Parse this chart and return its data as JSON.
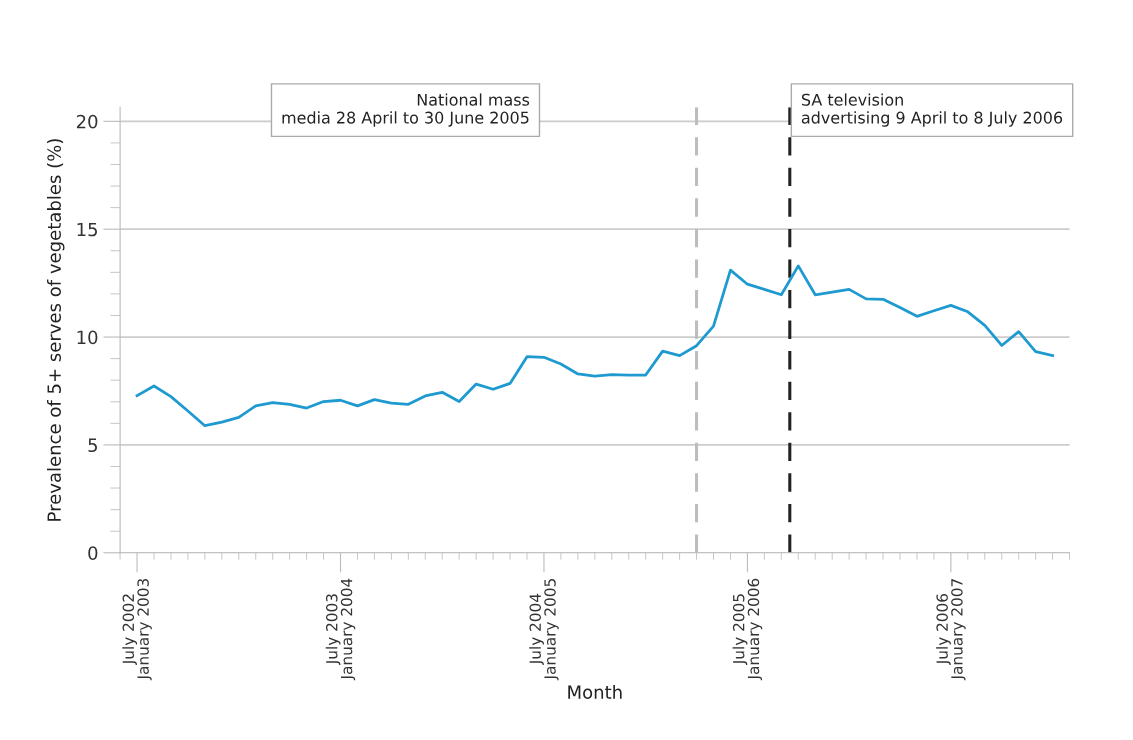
{
  "chart_data": {
    "type": "line",
    "xlabel": "Month",
    "ylabel": "Prevalence of 5+ serves of vegetables (%)",
    "categories": [
      "July 2002\nJanuary 2003",
      null,
      null,
      null,
      null,
      null,
      null,
      null,
      null,
      null,
      null,
      null,
      "July 2003\nJanuary 2004",
      null,
      null,
      null,
      null,
      null,
      null,
      null,
      null,
      null,
      null,
      null,
      "July 2004\nJanuary 2005",
      null,
      null,
      null,
      null,
      null,
      null,
      null,
      null,
      null,
      null,
      null,
      "July 2005\nJanuary 2006",
      null,
      null,
      null,
      null,
      null,
      null,
      null,
      null,
      null,
      null,
      null,
      "July 2006\nJanuary 2007",
      null,
      null,
      null,
      null,
      null,
      null
    ],
    "series": [
      {
        "color": "#1e9ad0",
        "values": [
          7.28,
          7.73,
          7.24,
          6.57,
          5.89,
          6.06,
          6.28,
          6.81,
          6.96,
          6.88,
          6.71,
          7.01,
          7.07,
          6.81,
          7.1,
          6.94,
          6.88,
          7.27,
          7.44,
          7.01,
          7.82,
          7.58,
          7.85,
          9.09,
          9.06,
          8.75,
          8.29,
          8.19,
          8.26,
          8.24,
          8.24,
          9.35,
          9.14,
          9.6,
          10.51,
          13.1,
          12.45,
          12.21,
          11.96,
          13.3,
          11.96,
          12.08,
          12.21,
          11.77,
          11.75,
          11.37,
          10.96,
          11.22,
          11.47,
          11.17,
          10.54,
          9.61,
          10.25,
          9.32,
          9.14
        ]
      }
    ],
    "ylim": [
      0,
      20.65
    ],
    "yticks": [
      0,
      5,
      10,
      15,
      20,
      {
        "value": 1,
        "label": null
      },
      {
        "value": 2,
        "label": null
      },
      {
        "value": 3,
        "label": null
      },
      {
        "value": 4,
        "label": null
      },
      {
        "value": 6,
        "label": null
      },
      {
        "value": 7,
        "label": null
      },
      {
        "value": 8,
        "label": null
      },
      {
        "value": 9,
        "label": null
      },
      {
        "value": 11,
        "label": null
      },
      {
        "value": 12,
        "label": null
      },
      {
        "value": 13,
        "label": null
      },
      {
        "value": 14,
        "label": null
      },
      {
        "value": 16,
        "label": null
      },
      {
        "value": 17,
        "label": null
      },
      {
        "value": 18,
        "label": null
      },
      {
        "value": 19,
        "label": null
      }
    ],
    "grid": "y",
    "line_style": "solid",
    "annotations": [
      "National mass\nmedia 28 April to 30 June 2005",
      "SA television\nadvertising 9 April to 8 July 2006"
    ]
  }
}
